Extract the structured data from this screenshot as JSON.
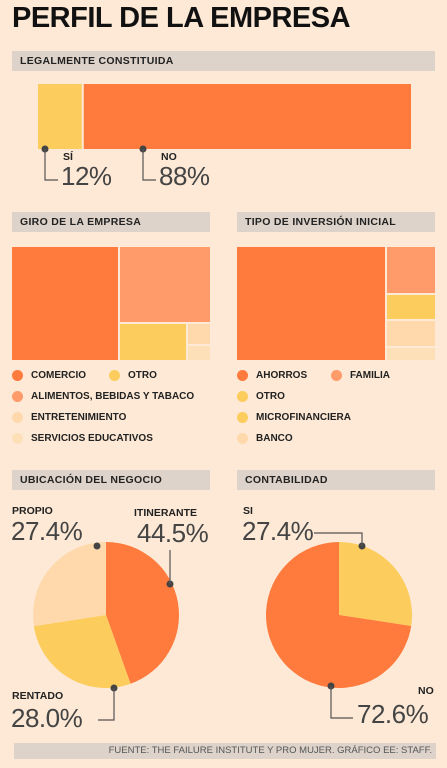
{
  "title": "PERFIL DE LA EMPRESA",
  "sections": {
    "legal": "LEGALMENTE CONSTITUIDA",
    "giro": "GIRO DE LA EMPRESA",
    "inversion": "TIPO DE INVERSIÓN INICIAL",
    "ubicacion": "UBICACIÓN DEL NEGOCIO",
    "contabilidad": "CONTABILIDAD"
  },
  "colors": {
    "dark_orange": "#ff7a3d",
    "salmon": "#ff9a6b",
    "yellow": "#fccd5c",
    "light_peach": "#ffd9ac",
    "peach": "#fde0b8"
  },
  "chart_data": [
    {
      "id": "legal",
      "type": "bar",
      "stacked": true,
      "categories": [
        "SÍ",
        "NO"
      ],
      "values": [
        12,
        88
      ],
      "labels": [
        "12%",
        "88%"
      ]
    },
    {
      "id": "giro",
      "type": "treemap",
      "categories": [
        "COMERCIO",
        "ALIMENTOS, BEBIDAS Y TABACO",
        "OTRO",
        "ENTRETENIMIENTO",
        "SERVICIOS EDUCATIVOS"
      ],
      "values": [
        48.5,
        29.5,
        14.0,
        4.5,
        3.5
      ],
      "legend": [
        [
          "COMERCIO",
          "OTRO"
        ],
        [
          "ALIMENTOS, BEBIDAS Y TABACO"
        ],
        [
          "ENTRETENIMIENTO"
        ],
        [
          "SERVICIOS EDUCATIVOS"
        ]
      ]
    },
    {
      "id": "inversion",
      "type": "treemap",
      "categories": [
        "AHORROS",
        "FAMILIA",
        "OTRO",
        "MICROFINANCIERA",
        "BANCO"
      ],
      "values": [
        67.5,
        13.0,
        7.0,
        7.5,
        5.0
      ],
      "legend": [
        [
          "AHORROS",
          "FAMILIA"
        ],
        [
          "OTRO"
        ],
        [
          "MICROFINANCIERA"
        ],
        [
          "BANCO"
        ]
      ]
    },
    {
      "id": "ubicacion",
      "type": "pie",
      "categories": [
        "ITINERANTE",
        "RENTADO",
        "PROPIO"
      ],
      "values": [
        44.5,
        28.0,
        27.4
      ],
      "labels": [
        "44.5%",
        "28.0%",
        "27.4%"
      ]
    },
    {
      "id": "contabilidad",
      "type": "pie",
      "categories": [
        "SI",
        "NO"
      ],
      "values": [
        27.4,
        72.6
      ],
      "labels": [
        "27.4%",
        "72.6%"
      ]
    }
  ],
  "footer": "FUENTE: THE FAILURE INSTITUTE Y PRO MUJER. GRÁFICO EE: STAFF."
}
